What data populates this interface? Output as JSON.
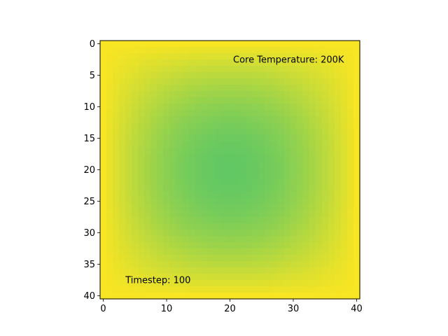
{
  "chart_data": {
    "type": "heatmap",
    "title": "",
    "xlabel": "",
    "ylabel": "",
    "grid_size": [
      41,
      41
    ],
    "xlim": [
      -0.5,
      40.5
    ],
    "ylim": [
      40.5,
      -0.5
    ],
    "x_ticks": [
      "0",
      "10",
      "20",
      "30",
      "40"
    ],
    "y_ticks": [
      "0",
      "5",
      "10",
      "15",
      "20",
      "25",
      "30",
      "35",
      "40"
    ],
    "colormap": "viridis",
    "colors": {
      "edge": "#f8e523",
      "center": "#62c863"
    },
    "grid": false,
    "annotations": [
      {
        "text": "Core Temperature: 200K",
        "x": 20.5,
        "y": 2.5
      },
      {
        "text": "Timestep: 100",
        "x": 3.5,
        "y": 37.5
      }
    ]
  }
}
